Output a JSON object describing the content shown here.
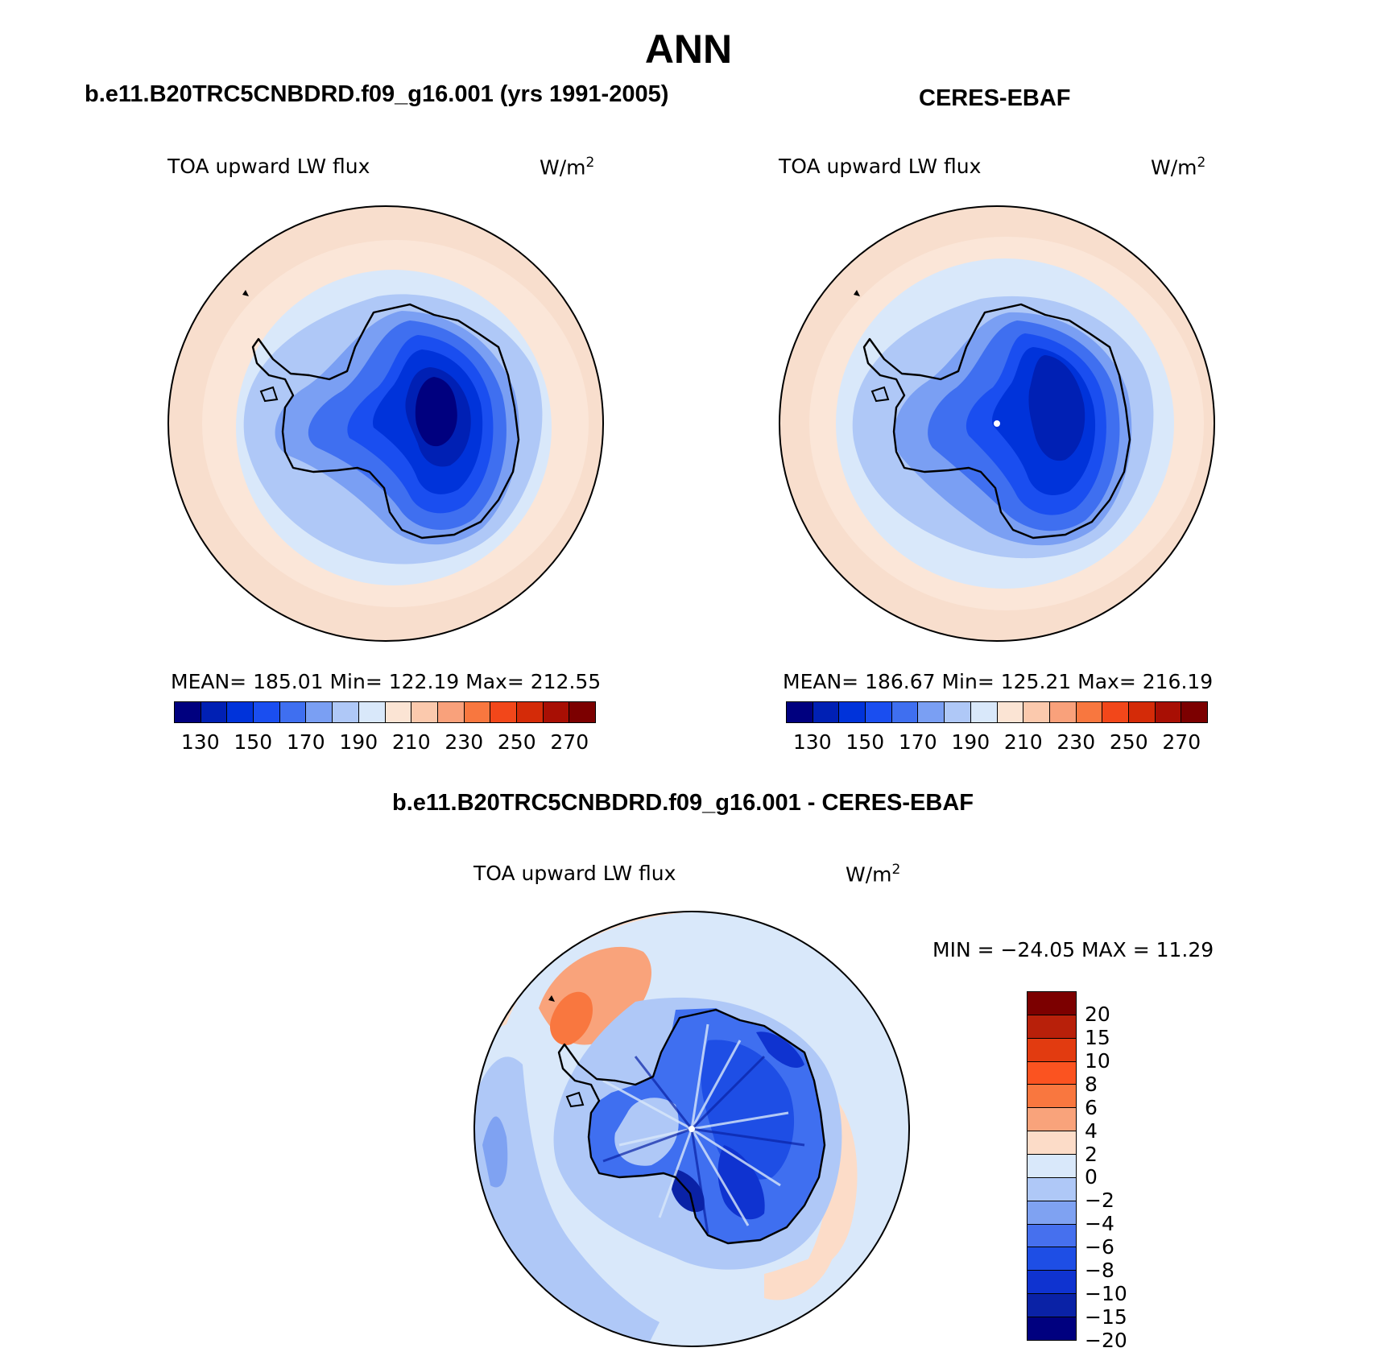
{
  "header": {
    "title": "ANN"
  },
  "panels": [
    {
      "id": "model",
      "title": "b.e11.B20TRC5CNBDRD.f09_g16.001 (yrs 1991-2005)",
      "variable": "TOA upward LW flux",
      "units_base": "W/m",
      "units_exp": "2",
      "stats": "MEAN=  185.01   Min=  122.19   Max=  212.55"
    },
    {
      "id": "obs",
      "title": "CERES-EBAF",
      "variable": "TOA upward LW flux",
      "units_base": "W/m",
      "units_exp": "2",
      "stats": "MEAN=  186.67   Min=  125.21   Max=  216.19"
    },
    {
      "id": "diff",
      "title": "b.e11.B20TRC5CNBDRD.f09_g16.001 - CERES-EBAF",
      "variable": "TOA upward LW flux",
      "units_base": "W/m",
      "units_exp": "2",
      "stats": "MIN = −24.05 MAX =   11.29"
    }
  ],
  "abs_colorbar": {
    "colors": [
      "#00007f",
      "#0020b4",
      "#0033da",
      "#1a4ef0",
      "#3f6ff0",
      "#7a9ff3",
      "#afc8f7",
      "#d9e8fa",
      "#fbe4d4",
      "#fbc9ad",
      "#f9a17b",
      "#f8773f",
      "#f2471a",
      "#d42b08",
      "#a80f04",
      "#7c0000"
    ],
    "labels": [
      "130",
      "150",
      "170",
      "190",
      "210",
      "230",
      "250",
      "270"
    ]
  },
  "diff_colorbar": {
    "colors": [
      "#7c0000",
      "#b8200a",
      "#e23b10",
      "#fb5320",
      "#f9773f",
      "#f9a37b",
      "#fcdcc8",
      "#d9e8fa",
      "#afc8f7",
      "#7fa2f2",
      "#4670ee",
      "#1e4ee5",
      "#0f33d0",
      "#0a22a6",
      "#00007f"
    ],
    "labels": [
      "20",
      "15",
      "10",
      "8",
      "6",
      "4",
      "2",
      "0",
      "−2",
      "−4",
      "−6",
      "−8",
      "−10",
      "−15",
      "−20"
    ]
  }
}
